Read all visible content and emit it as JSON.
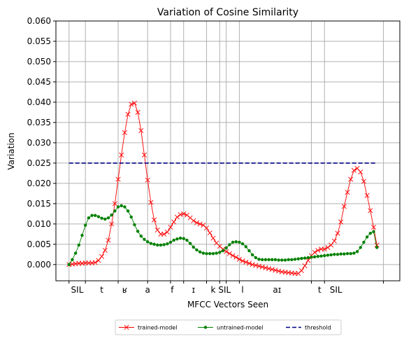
{
  "chart_data": {
    "type": "line",
    "title": "Variation of Cosine Similarity",
    "xlabel": "MFCC Vectors Seen",
    "ylabel": "Variation",
    "ylim": [
      -0.004,
      0.06
    ],
    "xlim": [
      -4,
      101
    ],
    "y_ticks": [
      0.0,
      0.005,
      0.01,
      0.015,
      0.02,
      0.025,
      0.03,
      0.035,
      0.04,
      0.045,
      0.05,
      0.055,
      0.06
    ],
    "y_tick_labels": [
      "0.000",
      "0.005",
      "0.010",
      "0.015",
      "0.020",
      "0.025",
      "0.030",
      "0.035",
      "0.040",
      "0.045",
      "0.050",
      "0.055",
      "0.060"
    ],
    "x_boundaries": [
      0,
      5,
      15,
      24,
      31,
      35,
      42,
      46,
      48,
      52,
      74,
      78,
      96
    ],
    "phonemes": [
      {
        "label": "SIL",
        "x": 2.5
      },
      {
        "label": "t",
        "x": 10
      },
      {
        "label": "ʁ",
        "x": 17
      },
      {
        "label": "a",
        "x": 24
      },
      {
        "label": "f",
        "x": 31.5
      },
      {
        "label": "ɪ",
        "x": 38
      },
      {
        "label": "k",
        "x": 44
      },
      {
        "label": "SIL",
        "x": 47.5
      },
      {
        "label": "l",
        "x": 53
      },
      {
        "label": "aɪ",
        "x": 63.5
      },
      {
        "label": "t",
        "x": 76.5
      },
      {
        "label": "SIL",
        "x": 81.5
      }
    ],
    "grid": true,
    "legend_position": "bottom-center",
    "series": [
      {
        "name": "trained-model",
        "color": "#ff0000",
        "marker": "x",
        "points": [
          [
            0,
            0.0
          ],
          [
            1,
            0.0001
          ],
          [
            2,
            0.0002
          ],
          [
            3,
            0.0003
          ],
          [
            4,
            0.0003
          ],
          [
            5,
            0.0004
          ],
          [
            6,
            0.0004
          ],
          [
            7,
            0.0004
          ],
          [
            8,
            0.0005
          ],
          [
            9,
            0.001
          ],
          [
            10,
            0.002
          ],
          [
            11,
            0.0035
          ],
          [
            12,
            0.006
          ],
          [
            13,
            0.01
          ],
          [
            14,
            0.015
          ],
          [
            15,
            0.021
          ],
          [
            16,
            0.027
          ],
          [
            17,
            0.0325
          ],
          [
            18,
            0.037
          ],
          [
            19,
            0.0395
          ],
          [
            20,
            0.0398
          ],
          [
            21,
            0.0375
          ],
          [
            22,
            0.033
          ],
          [
            23,
            0.027
          ],
          [
            24,
            0.0208
          ],
          [
            25,
            0.0153
          ],
          [
            26,
            0.011
          ],
          [
            27,
            0.0085
          ],
          [
            28,
            0.0075
          ],
          [
            29,
            0.0075
          ],
          [
            30,
            0.008
          ],
          [
            31,
            0.0092
          ],
          [
            32,
            0.0105
          ],
          [
            33,
            0.0117
          ],
          [
            34,
            0.0123
          ],
          [
            35,
            0.0125
          ],
          [
            36,
            0.0122
          ],
          [
            37,
            0.0115
          ],
          [
            38,
            0.0108
          ],
          [
            39,
            0.0103
          ],
          [
            40,
            0.01
          ],
          [
            41,
            0.0097
          ],
          [
            42,
            0.009
          ],
          [
            43,
            0.0078
          ],
          [
            44,
            0.0065
          ],
          [
            45,
            0.0053
          ],
          [
            46,
            0.0045
          ],
          [
            47,
            0.0038
          ],
          [
            48,
            0.0032
          ],
          [
            49,
            0.0027
          ],
          [
            50,
            0.0022
          ],
          [
            51,
            0.0018
          ],
          [
            52,
            0.0013
          ],
          [
            53,
            0.0009
          ],
          [
            54,
            0.0006
          ],
          [
            55,
            0.0003
          ],
          [
            56,
            0.0
          ],
          [
            57,
            -0.0002
          ],
          [
            58,
            -0.0004
          ],
          [
            59,
            -0.0006
          ],
          [
            60,
            -0.0008
          ],
          [
            61,
            -0.001
          ],
          [
            62,
            -0.0012
          ],
          [
            63,
            -0.0014
          ],
          [
            64,
            -0.0016
          ],
          [
            65,
            -0.0018
          ],
          [
            66,
            -0.0019
          ],
          [
            67,
            -0.002
          ],
          [
            68,
            -0.0021
          ],
          [
            69,
            -0.0022
          ],
          [
            70,
            -0.0022
          ],
          [
            71,
            -0.0015
          ],
          [
            72,
            -0.0003
          ],
          [
            73,
            0.001
          ],
          [
            74,
            0.0022
          ],
          [
            75,
            0.003
          ],
          [
            76,
            0.0035
          ],
          [
            77,
            0.0038
          ],
          [
            78,
            0.0038
          ],
          [
            79,
            0.0042
          ],
          [
            80,
            0.0048
          ],
          [
            81,
            0.0058
          ],
          [
            82,
            0.0077
          ],
          [
            83,
            0.0105
          ],
          [
            84,
            0.0143
          ],
          [
            85,
            0.0178
          ],
          [
            86,
            0.021
          ],
          [
            87,
            0.0232
          ],
          [
            88,
            0.0237
          ],
          [
            89,
            0.0228
          ],
          [
            90,
            0.0205
          ],
          [
            91,
            0.017
          ],
          [
            92,
            0.0133
          ],
          [
            93,
            0.0092
          ],
          [
            94,
            0.0048
          ]
        ]
      },
      {
        "name": "untrained-model",
        "color": "#008000",
        "marker": "dot",
        "points": [
          [
            0,
            0.0
          ],
          [
            1,
            0.0012
          ],
          [
            2,
            0.0028
          ],
          [
            3,
            0.0048
          ],
          [
            4,
            0.0072
          ],
          [
            5,
            0.0097
          ],
          [
            6,
            0.0115
          ],
          [
            7,
            0.0121
          ],
          [
            8,
            0.0121
          ],
          [
            9,
            0.0118
          ],
          [
            10,
            0.0114
          ],
          [
            11,
            0.0112
          ],
          [
            12,
            0.0115
          ],
          [
            13,
            0.0122
          ],
          [
            14,
            0.0132
          ],
          [
            15,
            0.0142
          ],
          [
            16,
            0.0145
          ],
          [
            17,
            0.0142
          ],
          [
            18,
            0.0132
          ],
          [
            19,
            0.0117
          ],
          [
            20,
            0.0098
          ],
          [
            21,
            0.0082
          ],
          [
            22,
            0.007
          ],
          [
            23,
            0.0062
          ],
          [
            24,
            0.0056
          ],
          [
            25,
            0.0052
          ],
          [
            26,
            0.005
          ],
          [
            27,
            0.0048
          ],
          [
            28,
            0.0048
          ],
          [
            29,
            0.0049
          ],
          [
            30,
            0.0051
          ],
          [
            31,
            0.0055
          ],
          [
            32,
            0.006
          ],
          [
            33,
            0.0063
          ],
          [
            34,
            0.0065
          ],
          [
            35,
            0.0064
          ],
          [
            36,
            0.006
          ],
          [
            37,
            0.0052
          ],
          [
            38,
            0.0043
          ],
          [
            39,
            0.0036
          ],
          [
            40,
            0.0031
          ],
          [
            41,
            0.0028
          ],
          [
            42,
            0.0027
          ],
          [
            43,
            0.0027
          ],
          [
            44,
            0.0027
          ],
          [
            45,
            0.0028
          ],
          [
            46,
            0.003
          ],
          [
            47,
            0.0034
          ],
          [
            48,
            0.0041
          ],
          [
            49,
            0.0049
          ],
          [
            50,
            0.0055
          ],
          [
            51,
            0.0056
          ],
          [
            52,
            0.0055
          ],
          [
            53,
            0.0051
          ],
          [
            54,
            0.0044
          ],
          [
            55,
            0.0034
          ],
          [
            56,
            0.0024
          ],
          [
            57,
            0.0017
          ],
          [
            58,
            0.0013
          ],
          [
            59,
            0.0012
          ],
          [
            60,
            0.0012
          ],
          [
            61,
            0.0012
          ],
          [
            62,
            0.0012
          ],
          [
            63,
            0.0012
          ],
          [
            64,
            0.0011
          ],
          [
            65,
            0.0011
          ],
          [
            66,
            0.0011
          ],
          [
            67,
            0.0012
          ],
          [
            68,
            0.0012
          ],
          [
            69,
            0.0013
          ],
          [
            70,
            0.0014
          ],
          [
            71,
            0.0015
          ],
          [
            72,
            0.0016
          ],
          [
            73,
            0.0017
          ],
          [
            74,
            0.0018
          ],
          [
            75,
            0.0019
          ],
          [
            76,
            0.002
          ],
          [
            77,
            0.0021
          ],
          [
            78,
            0.0022
          ],
          [
            79,
            0.0023
          ],
          [
            80,
            0.0024
          ],
          [
            81,
            0.0025
          ],
          [
            82,
            0.0025
          ],
          [
            83,
            0.0026
          ],
          [
            84,
            0.0026
          ],
          [
            85,
            0.0027
          ],
          [
            86,
            0.0027
          ],
          [
            87,
            0.0028
          ],
          [
            88,
            0.0032
          ],
          [
            89,
            0.0042
          ],
          [
            90,
            0.0055
          ],
          [
            91,
            0.0068
          ],
          [
            92,
            0.0077
          ],
          [
            93,
            0.0081
          ],
          [
            94,
            0.0042
          ]
        ]
      },
      {
        "name": "threshold",
        "color": "#00008b",
        "marker": "none",
        "dashed": true,
        "points": [
          [
            0,
            0.025
          ],
          [
            94,
            0.025
          ]
        ]
      }
    ]
  }
}
